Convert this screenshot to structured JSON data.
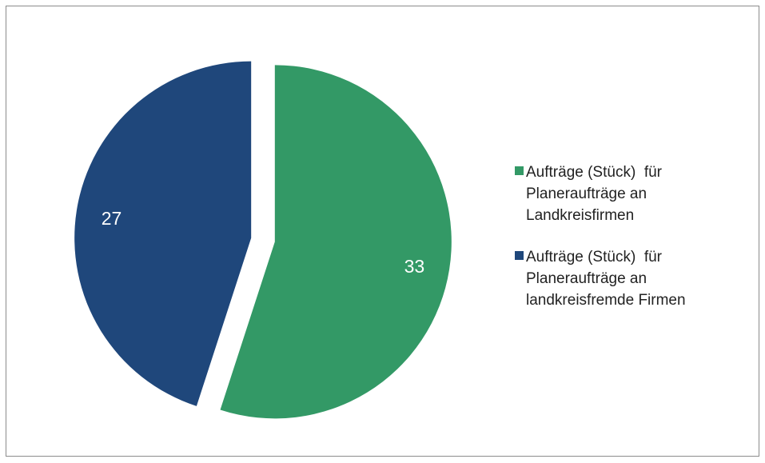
{
  "chart_data": {
    "type": "pie",
    "labels": [
      "Aufträge (Stück)  für Planeraufträge an Landkreisfirmen",
      "Aufträge (Stück)  für Planeraufträge an landkreisfremde Firmen"
    ],
    "values": [
      33,
      27
    ],
    "colors": [
      "#339966",
      "#1f477b"
    ],
    "legend": "right"
  }
}
